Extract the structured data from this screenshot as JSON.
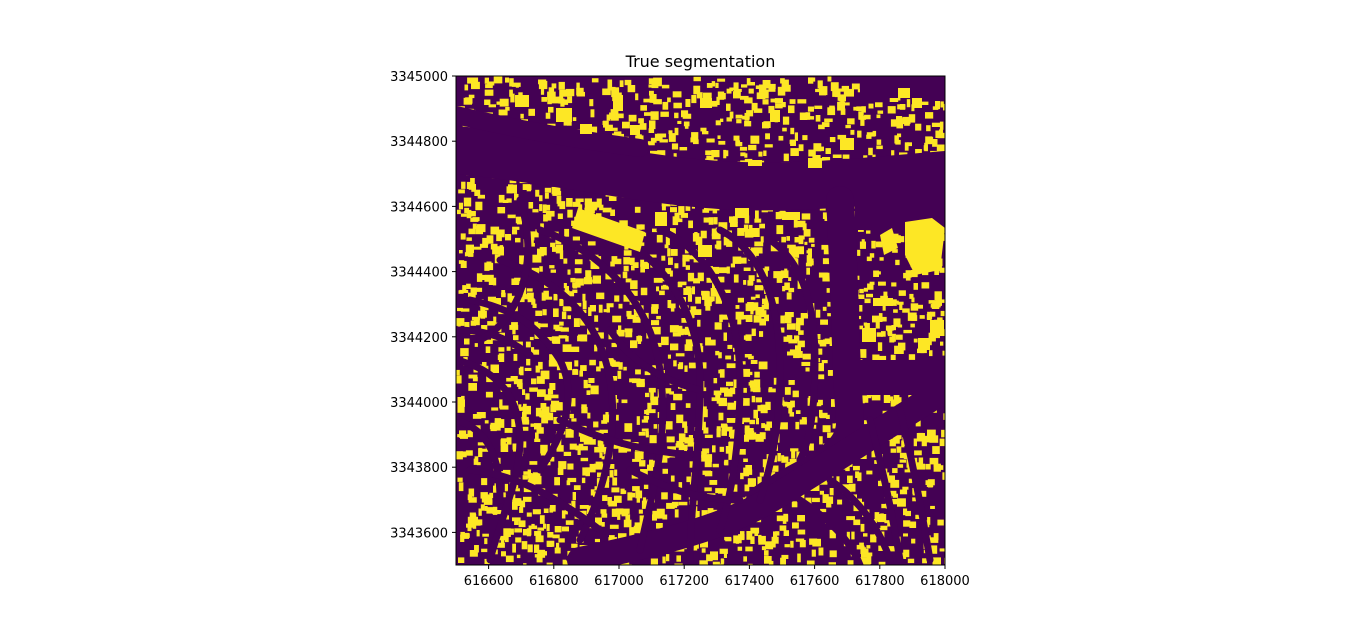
{
  "chart_data": {
    "type": "heatmap",
    "title": "True segmentation",
    "xlabel": "",
    "ylabel": "",
    "xlim": [
      616500,
      618000
    ],
    "ylim": [
      3343500,
      3345000
    ],
    "x_ticks": [
      "616600",
      "616800",
      "617000",
      "617200",
      "617400",
      "617600",
      "617800",
      "618000"
    ],
    "x_tick_values": [
      616600,
      616800,
      617000,
      617200,
      617400,
      617600,
      617800,
      618000
    ],
    "y_ticks": [
      "3343600",
      "3343800",
      "3344000",
      "3344200",
      "3344400",
      "3344600",
      "3344800",
      "3345000"
    ],
    "y_tick_values": [
      3343600,
      3343800,
      3344000,
      3344200,
      3344400,
      3344600,
      3344800,
      3345000
    ],
    "classes": [
      {
        "value": 0,
        "color": "#440154"
      },
      {
        "value": 1,
        "color": "#fde725"
      }
    ],
    "grid": false
  }
}
